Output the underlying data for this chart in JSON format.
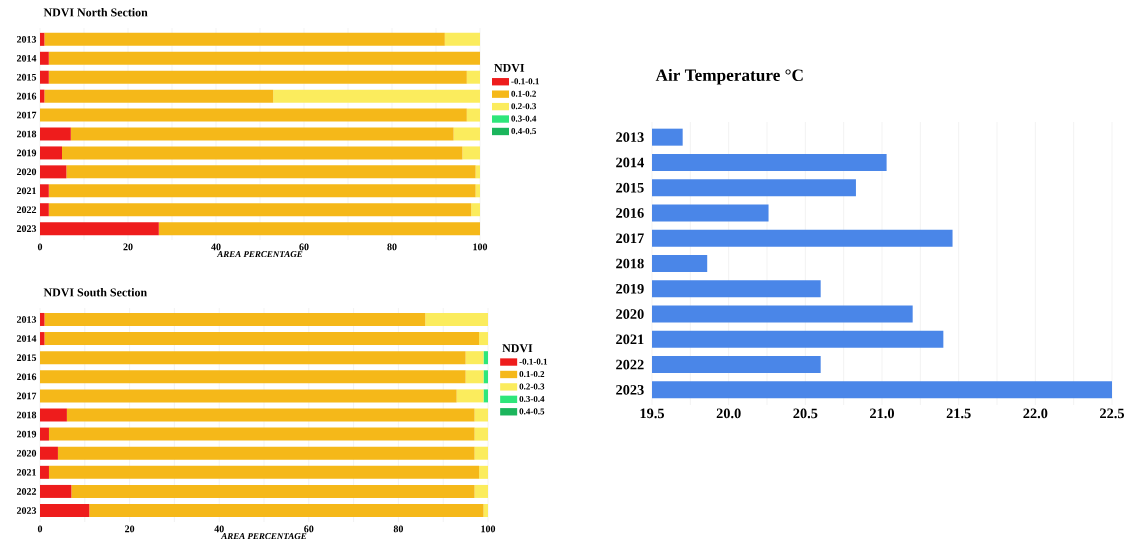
{
  "chart_data": [
    {
      "type": "bar",
      "orientation": "horizontal",
      "stacked": true,
      "title": "NDVI North Section",
      "xlabel": "AREA PERCENTAGE",
      "legend_title": "NDVI",
      "legend": "right",
      "grid": "x",
      "categories": [
        "2013",
        "2014",
        "2015",
        "2016",
        "2017",
        "2018",
        "2019",
        "2020",
        "2021",
        "2022",
        "2023"
      ],
      "xlim": [
        0,
        100
      ],
      "xticks": [
        0,
        {
          "value": 10,
          "label": null
        },
        20,
        {
          "value": 30,
          "label": null
        },
        40,
        {
          "value": 50,
          "label": null
        },
        60,
        {
          "value": 70,
          "label": null
        },
        80,
        {
          "value": 90,
          "label": null
        },
        100
      ],
      "series": [
        {
          "name": "-0.1-0.1",
          "color": "#ee1c1c",
          "values": [
            1,
            2,
            2,
            1,
            0,
            7,
            5,
            6,
            2,
            2,
            27
          ]
        },
        {
          "name": "0.1-0.2",
          "color": "#f5b819",
          "values": [
            91,
            98,
            95,
            52,
            97,
            87,
            91,
            93,
            97,
            96,
            73
          ]
        },
        {
          "name": "0.2-0.3",
          "color": "#fbec5d",
          "values": [
            8,
            0,
            3,
            47,
            3,
            6,
            4,
            1,
            1,
            2,
            0
          ]
        },
        {
          "name": "0.3-0.4",
          "color": "#2ee67a",
          "values": [
            0,
            0,
            0,
            0,
            0,
            0,
            0,
            0,
            0,
            0,
            0
          ]
        },
        {
          "name": "0.4-0.5",
          "color": "#1bb55c",
          "values": [
            0,
            0,
            0,
            0,
            0,
            0,
            0,
            0,
            0,
            0,
            0
          ]
        }
      ]
    },
    {
      "type": "bar",
      "orientation": "horizontal",
      "stacked": true,
      "title": "NDVI South Section",
      "xlabel": "AREA PERCENTAGE",
      "legend_title": "NDVI",
      "legend": "right",
      "grid": "x",
      "categories": [
        "2013",
        "2014",
        "2015",
        "2016",
        "2017",
        "2018",
        "2019",
        "2020",
        "2021",
        "2022",
        "2023"
      ],
      "xlim": [
        0,
        100
      ],
      "xticks": [
        0,
        {
          "value": 10,
          "label": null
        },
        20,
        {
          "value": 30,
          "label": null
        },
        40,
        {
          "value": 50,
          "label": null
        },
        60,
        {
          "value": 70,
          "label": null
        },
        80,
        {
          "value": 90,
          "label": null
        },
        100
      ],
      "series": [
        {
          "name": "-0.1-0.1",
          "color": "#ee1c1c",
          "values": [
            1,
            1,
            0,
            0,
            0,
            6,
            2,
            4,
            2,
            7,
            11
          ]
        },
        {
          "name": "0.1-0.2",
          "color": "#f5b819",
          "values": [
            85,
            97,
            95,
            95,
            93,
            91,
            95,
            93,
            96,
            90,
            88
          ]
        },
        {
          "name": "0.2-0.3",
          "color": "#fbec5d",
          "values": [
            14,
            2,
            4,
            4,
            6,
            3,
            3,
            3,
            2,
            3,
            1
          ]
        },
        {
          "name": "0.3-0.4",
          "color": "#2ee67a",
          "values": [
            0,
            0,
            1,
            1,
            1,
            0,
            0,
            0,
            0,
            0,
            0
          ]
        },
        {
          "name": "0.4-0.5",
          "color": "#1bb55c",
          "values": [
            0,
            0,
            0,
            0,
            0,
            0,
            0,
            0,
            0,
            0,
            0
          ]
        }
      ]
    },
    {
      "type": "bar",
      "orientation": "horizontal",
      "title": "Air Temperature °C",
      "grid": "x",
      "color": "#4a86e8",
      "categories": [
        "2013",
        "2014",
        "2015",
        "2016",
        "2017",
        "2018",
        "2019",
        "2020",
        "2021",
        "2022",
        "2023"
      ],
      "values": [
        19.7,
        21.03,
        20.83,
        20.26,
        21.46,
        19.86,
        20.6,
        21.2,
        21.4,
        20.6,
        22.5
      ],
      "xlim": [
        19.5,
        22.5
      ],
      "xticks": [
        {
          "value": 19.5,
          "label": "19.5"
        },
        {
          "value": 19.75,
          "label": null
        },
        {
          "value": 20,
          "label": "20.0"
        },
        {
          "value": 20.25,
          "label": null
        },
        {
          "value": 20.5,
          "label": "20.5"
        },
        {
          "value": 20.75,
          "label": null
        },
        {
          "value": 21,
          "label": "21.0"
        },
        {
          "value": 21.25,
          "label": null
        },
        {
          "value": 21.5,
          "label": "21.5"
        },
        {
          "value": 21.75,
          "label": null
        },
        {
          "value": 22,
          "label": "22.0"
        },
        {
          "value": 22.25,
          "label": null
        },
        {
          "value": 22.5,
          "label": "22.5"
        }
      ]
    }
  ]
}
